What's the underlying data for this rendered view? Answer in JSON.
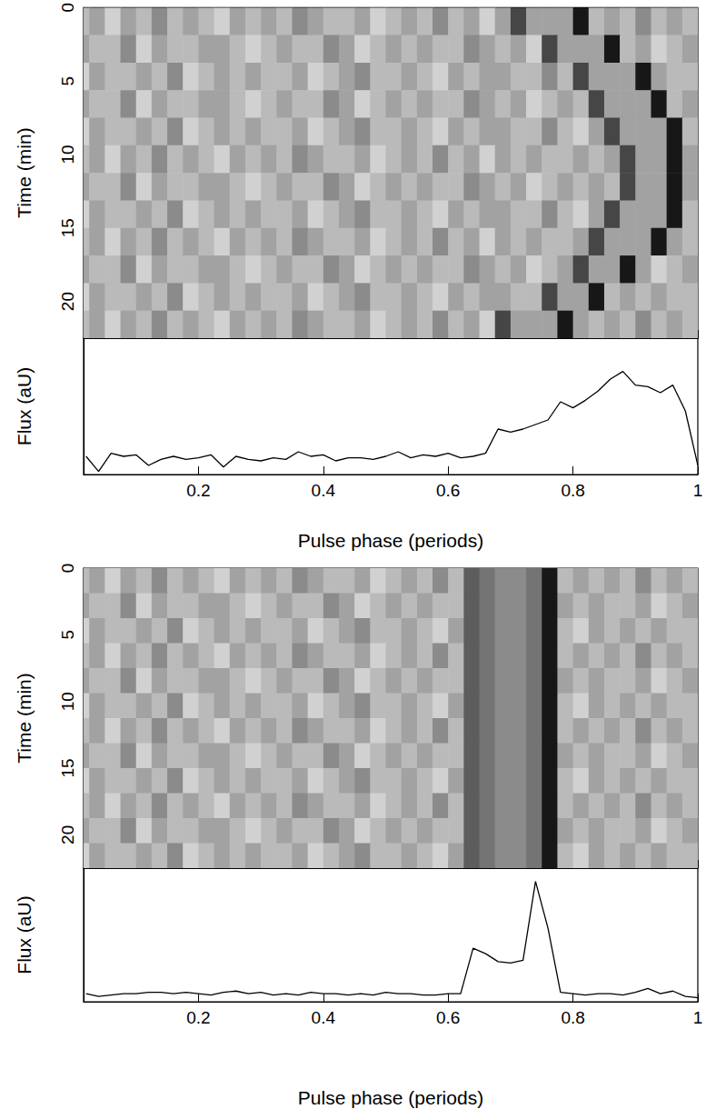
{
  "chart_data": [
    {
      "type": "heatmap",
      "ylabel": "Time (min)",
      "xlim": [
        0.016,
        1
      ],
      "ylim": [
        0,
        22.5
      ],
      "xticks": [
        0.2,
        0.4,
        0.6,
        0.8,
        1
      ],
      "yticks": [
        0,
        5,
        10,
        15,
        20
      ],
      "tick_labels": "y",
      "zlim": [
        0,
        10
      ],
      "x_bins": [
        0,
        0.025,
        0.05,
        0.075,
        0.1,
        0.125,
        0.15,
        0.175,
        0.2,
        0.225,
        0.25,
        0.275,
        0.3,
        0.325,
        0.35,
        0.375,
        0.4,
        0.425,
        0.45,
        0.475,
        0.5,
        0.525,
        0.55,
        0.575,
        0.6,
        0.625,
        0.65,
        0.675,
        0.7,
        0.725,
        0.75,
        0.775,
        0.8,
        0.825,
        0.85,
        0.875,
        0.9,
        0.925,
        0.95,
        0.975,
        1
      ],
      "y_bins": [
        0,
        1.875,
        3.75,
        5.625,
        7.5,
        9.375,
        11.25,
        13.125,
        15,
        16.875,
        18.75,
        20.625,
        22.5
      ],
      "cells": [
        [
          2,
          3,
          1,
          3,
          2,
          4,
          2,
          3,
          2,
          1,
          3,
          2,
          3,
          2,
          4,
          3,
          2,
          2,
          3,
          1,
          2,
          3,
          2,
          4,
          2,
          3,
          1,
          3,
          7,
          3,
          3,
          3,
          9,
          2,
          3,
          2,
          4,
          2,
          3,
          2
        ],
        [
          3,
          2,
          2,
          4,
          1,
          3,
          2,
          2,
          3,
          3,
          2,
          1,
          2,
          3,
          2,
          2,
          4,
          3,
          1,
          2,
          3,
          2,
          3,
          2,
          2,
          4,
          3,
          2,
          3,
          1,
          7,
          3,
          3,
          3,
          9,
          2,
          3,
          1,
          2,
          3
        ],
        [
          1,
          3,
          2,
          2,
          3,
          2,
          4,
          1,
          2,
          3,
          2,
          3,
          2,
          2,
          3,
          1,
          2,
          3,
          4,
          2,
          2,
          3,
          2,
          1,
          3,
          2,
          3,
          3,
          2,
          2,
          4,
          2,
          7,
          3,
          3,
          3,
          9,
          3,
          2,
          2
        ],
        [
          3,
          2,
          2,
          4,
          1,
          3,
          2,
          2,
          3,
          3,
          2,
          1,
          2,
          3,
          2,
          2,
          4,
          3,
          1,
          2,
          3,
          2,
          3,
          2,
          2,
          4,
          3,
          2,
          3,
          1,
          2,
          3,
          2,
          7,
          3,
          3,
          3,
          9,
          2,
          3
        ],
        [
          1,
          3,
          2,
          2,
          3,
          2,
          4,
          1,
          2,
          3,
          2,
          3,
          2,
          2,
          3,
          1,
          2,
          3,
          4,
          2,
          2,
          3,
          2,
          1,
          3,
          2,
          3,
          3,
          2,
          2,
          4,
          2,
          1,
          3,
          7,
          3,
          3,
          3,
          9,
          2
        ],
        [
          2,
          3,
          1,
          3,
          2,
          4,
          2,
          3,
          2,
          1,
          3,
          2,
          3,
          2,
          4,
          3,
          2,
          2,
          3,
          1,
          2,
          3,
          2,
          4,
          2,
          3,
          1,
          3,
          2,
          3,
          2,
          2,
          3,
          2,
          3,
          7,
          3,
          3,
          9,
          3
        ],
        [
          3,
          2,
          2,
          4,
          1,
          3,
          2,
          2,
          3,
          3,
          2,
          1,
          2,
          3,
          2,
          2,
          4,
          3,
          1,
          2,
          3,
          2,
          3,
          2,
          2,
          4,
          3,
          2,
          3,
          1,
          2,
          3,
          2,
          3,
          2,
          7,
          3,
          3,
          9,
          3
        ],
        [
          1,
          3,
          2,
          2,
          3,
          2,
          4,
          1,
          2,
          3,
          2,
          3,
          2,
          2,
          3,
          1,
          2,
          3,
          4,
          2,
          2,
          3,
          2,
          1,
          3,
          2,
          3,
          3,
          2,
          2,
          4,
          2,
          1,
          3,
          7,
          3,
          3,
          3,
          9,
          2
        ],
        [
          2,
          3,
          1,
          3,
          2,
          4,
          2,
          3,
          2,
          1,
          3,
          2,
          3,
          2,
          4,
          3,
          2,
          2,
          3,
          1,
          2,
          3,
          2,
          4,
          2,
          3,
          1,
          3,
          2,
          3,
          2,
          2,
          3,
          7,
          3,
          3,
          3,
          9,
          3,
          2
        ],
        [
          3,
          2,
          2,
          4,
          1,
          3,
          2,
          2,
          3,
          3,
          2,
          1,
          2,
          3,
          2,
          2,
          4,
          3,
          1,
          2,
          3,
          2,
          3,
          2,
          2,
          4,
          3,
          2,
          3,
          1,
          2,
          3,
          7,
          3,
          3,
          9,
          3,
          1,
          2,
          3
        ],
        [
          1,
          3,
          2,
          2,
          3,
          2,
          4,
          1,
          2,
          3,
          2,
          3,
          2,
          2,
          3,
          1,
          2,
          3,
          4,
          2,
          2,
          3,
          2,
          1,
          3,
          2,
          3,
          3,
          2,
          2,
          7,
          3,
          3,
          9,
          2,
          3,
          2,
          3,
          2,
          2
        ],
        [
          2,
          3,
          1,
          3,
          2,
          4,
          2,
          3,
          2,
          1,
          3,
          2,
          3,
          2,
          4,
          3,
          2,
          2,
          3,
          1,
          2,
          3,
          2,
          4,
          2,
          3,
          1,
          7,
          3,
          3,
          3,
          9,
          3,
          2,
          3,
          2,
          4,
          2,
          3,
          2
        ]
      ]
    },
    {
      "type": "line",
      "xlabel": "Pulse phase (periods)",
      "ylabel": "Flux (aU)",
      "xlim": [
        0.016,
        1
      ],
      "ylim": [
        0,
        9
      ],
      "xticks": [
        0.2,
        0.4,
        0.6,
        0.8,
        1
      ],
      "tick_labels": "x",
      "color": "#000000",
      "x": [
        0.02,
        0.04,
        0.06,
        0.08,
        0.1,
        0.12,
        0.14,
        0.16,
        0.18,
        0.2,
        0.22,
        0.24,
        0.26,
        0.28,
        0.3,
        0.32,
        0.34,
        0.36,
        0.38,
        0.4,
        0.42,
        0.44,
        0.46,
        0.48,
        0.5,
        0.52,
        0.54,
        0.56,
        0.58,
        0.6,
        0.62,
        0.64,
        0.66,
        0.68,
        0.7,
        0.72,
        0.74,
        0.76,
        0.78,
        0.8,
        0.82,
        0.84,
        0.86,
        0.88,
        0.9,
        0.92,
        0.94,
        0.96,
        0.98,
        1
      ],
      "values": [
        1.2,
        0.2,
        1.4,
        1.2,
        1.3,
        0.6,
        1.0,
        1.2,
        1.0,
        1.1,
        1.3,
        0.5,
        1.2,
        1.0,
        0.9,
        1.1,
        1.0,
        1.5,
        1.2,
        1.3,
        0.9,
        1.1,
        1.1,
        1.0,
        1.2,
        1.5,
        1.1,
        1.3,
        1.2,
        1.4,
        1.1,
        1.2,
        1.4,
        3.0,
        2.8,
        3.0,
        3.3,
        3.6,
        4.8,
        4.4,
        4.9,
        5.5,
        6.3,
        6.8,
        5.9,
        5.8,
        5.4,
        5.9,
        4.2,
        0.6
      ]
    },
    {
      "type": "heatmap",
      "ylabel": "Time (min)",
      "xlim": [
        0.016,
        1
      ],
      "ylim": [
        0,
        22.5
      ],
      "xticks": [
        0.2,
        0.4,
        0.6,
        0.8,
        1
      ],
      "yticks": [
        0,
        5,
        10,
        15,
        20
      ],
      "tick_labels": "y",
      "zlim": [
        0,
        10
      ],
      "x_bins": [
        0,
        0.025,
        0.05,
        0.075,
        0.1,
        0.125,
        0.15,
        0.175,
        0.2,
        0.225,
        0.25,
        0.275,
        0.3,
        0.325,
        0.35,
        0.375,
        0.4,
        0.425,
        0.45,
        0.475,
        0.5,
        0.525,
        0.55,
        0.575,
        0.6,
        0.625,
        0.65,
        0.675,
        0.7,
        0.725,
        0.75,
        0.775,
        0.8,
        0.825,
        0.85,
        0.875,
        0.9,
        0.925,
        0.95,
        0.975,
        1
      ],
      "y_bins": [
        0,
        1.875,
        3.75,
        5.625,
        7.5,
        9.375,
        11.25,
        13.125,
        15,
        16.875,
        18.75,
        20.625,
        22.5
      ],
      "cells": [
        [
          2,
          3,
          1,
          3,
          2,
          4,
          2,
          3,
          2,
          1,
          3,
          2,
          3,
          2,
          4,
          3,
          2,
          2,
          3,
          1,
          2,
          3,
          2,
          4,
          2,
          6,
          5,
          4,
          4,
          5,
          9,
          2,
          3,
          2,
          3,
          2,
          4,
          2,
          3,
          2
        ],
        [
          3,
          2,
          2,
          4,
          1,
          3,
          2,
          2,
          3,
          3,
          2,
          1,
          2,
          3,
          2,
          2,
          4,
          3,
          1,
          2,
          3,
          2,
          3,
          2,
          2,
          6,
          5,
          4,
          4,
          5,
          9,
          3,
          2,
          3,
          2,
          2,
          3,
          1,
          2,
          3
        ],
        [
          1,
          3,
          2,
          2,
          3,
          2,
          4,
          1,
          2,
          3,
          2,
          3,
          2,
          2,
          3,
          1,
          2,
          3,
          4,
          2,
          2,
          3,
          2,
          1,
          3,
          6,
          5,
          4,
          4,
          5,
          9,
          2,
          1,
          3,
          2,
          3,
          2,
          3,
          2,
          2
        ],
        [
          2,
          3,
          1,
          3,
          2,
          4,
          2,
          3,
          2,
          1,
          3,
          2,
          3,
          2,
          4,
          3,
          2,
          2,
          3,
          1,
          2,
          3,
          2,
          4,
          2,
          6,
          5,
          4,
          4,
          5,
          9,
          2,
          3,
          2,
          3,
          2,
          4,
          2,
          3,
          2
        ],
        [
          3,
          2,
          2,
          4,
          1,
          3,
          2,
          2,
          3,
          3,
          2,
          1,
          2,
          3,
          2,
          2,
          4,
          3,
          1,
          2,
          3,
          2,
          3,
          2,
          2,
          6,
          5,
          4,
          4,
          5,
          9,
          3,
          2,
          3,
          2,
          2,
          3,
          1,
          2,
          3
        ],
        [
          1,
          3,
          2,
          2,
          3,
          2,
          4,
          1,
          2,
          3,
          2,
          3,
          2,
          2,
          3,
          1,
          2,
          3,
          4,
          2,
          2,
          3,
          2,
          1,
          3,
          6,
          5,
          4,
          4,
          5,
          9,
          2,
          1,
          3,
          2,
          3,
          2,
          3,
          2,
          2
        ],
        [
          2,
          3,
          1,
          3,
          2,
          4,
          2,
          3,
          2,
          1,
          3,
          2,
          3,
          2,
          4,
          3,
          2,
          2,
          3,
          1,
          2,
          3,
          2,
          4,
          2,
          6,
          5,
          4,
          4,
          5,
          9,
          2,
          3,
          2,
          3,
          2,
          4,
          2,
          3,
          2
        ],
        [
          3,
          2,
          2,
          4,
          1,
          3,
          2,
          2,
          3,
          3,
          2,
          1,
          2,
          3,
          2,
          2,
          4,
          3,
          1,
          2,
          3,
          2,
          3,
          2,
          2,
          6,
          5,
          4,
          4,
          5,
          9,
          3,
          2,
          3,
          2,
          2,
          3,
          1,
          2,
          3
        ],
        [
          1,
          3,
          2,
          2,
          3,
          2,
          4,
          1,
          2,
          3,
          2,
          3,
          2,
          2,
          3,
          1,
          2,
          3,
          4,
          2,
          2,
          3,
          2,
          1,
          3,
          6,
          5,
          4,
          4,
          5,
          9,
          2,
          1,
          3,
          2,
          3,
          2,
          3,
          2,
          2
        ],
        [
          2,
          3,
          1,
          3,
          2,
          4,
          2,
          3,
          2,
          1,
          3,
          2,
          3,
          2,
          4,
          3,
          2,
          2,
          3,
          1,
          2,
          3,
          2,
          4,
          2,
          6,
          5,
          4,
          4,
          5,
          9,
          2,
          3,
          2,
          3,
          2,
          4,
          2,
          3,
          2
        ],
        [
          3,
          2,
          2,
          4,
          1,
          3,
          2,
          2,
          3,
          3,
          2,
          1,
          2,
          3,
          2,
          2,
          4,
          3,
          1,
          2,
          3,
          2,
          3,
          2,
          2,
          6,
          5,
          4,
          4,
          5,
          9,
          3,
          2,
          3,
          2,
          2,
          3,
          1,
          2,
          3
        ],
        [
          1,
          3,
          2,
          2,
          3,
          2,
          4,
          1,
          2,
          3,
          2,
          3,
          2,
          2,
          3,
          1,
          2,
          3,
          4,
          2,
          2,
          3,
          2,
          1,
          3,
          6,
          5,
          4,
          4,
          5,
          9,
          2,
          1,
          3,
          2,
          3,
          2,
          3,
          2,
          2
        ]
      ]
    },
    {
      "type": "line",
      "xlabel": "Pulse phase (periods)",
      "ylabel": "Flux (aU)",
      "xlim": [
        0.016,
        1
      ],
      "ylim": [
        0,
        10
      ],
      "xticks": [
        0.2,
        0.4,
        0.6,
        0.8,
        1
      ],
      "tick_labels": "x",
      "color": "#000000",
      "x": [
        0.02,
        0.04,
        0.06,
        0.08,
        0.1,
        0.12,
        0.14,
        0.16,
        0.18,
        0.2,
        0.22,
        0.24,
        0.26,
        0.28,
        0.3,
        0.32,
        0.34,
        0.36,
        0.38,
        0.4,
        0.42,
        0.44,
        0.46,
        0.48,
        0.5,
        0.52,
        0.54,
        0.56,
        0.58,
        0.6,
        0.62,
        0.64,
        0.66,
        0.68,
        0.7,
        0.72,
        0.74,
        0.76,
        0.78,
        0.8,
        0.82,
        0.84,
        0.86,
        0.88,
        0.9,
        0.92,
        0.94,
        0.96,
        0.98,
        1
      ],
      "values": [
        0.6,
        0.4,
        0.5,
        0.6,
        0.6,
        0.7,
        0.7,
        0.6,
        0.7,
        0.6,
        0.5,
        0.7,
        0.8,
        0.6,
        0.7,
        0.5,
        0.6,
        0.5,
        0.7,
        0.6,
        0.6,
        0.5,
        0.6,
        0.5,
        0.7,
        0.6,
        0.6,
        0.5,
        0.5,
        0.6,
        0.6,
        4.0,
        3.6,
        3.0,
        2.9,
        3.1,
        9.0,
        5.5,
        0.7,
        0.6,
        0.5,
        0.6,
        0.6,
        0.5,
        0.7,
        1.0,
        0.6,
        0.8,
        0.4,
        0.3
      ]
    }
  ]
}
